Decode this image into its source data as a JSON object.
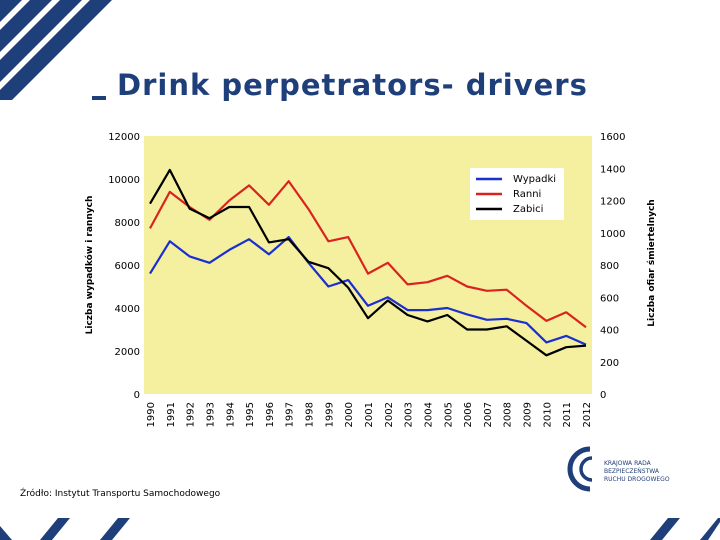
{
  "slide": {
    "title": "Drink perpetrators- drivers",
    "source": "Źródło: Instytut Transportu Samochodowego",
    "logo_lines": [
      "KRAJOWA RADA",
      "BEZPIECZEŃSTWA",
      "RUCHU DROGOWEGO"
    ]
  },
  "colors": {
    "plot_bg": "#f5f0a0",
    "brand_blue": "#1f3f7a",
    "wypadki": "#1a2fd0",
    "ranni": "#d9231f",
    "zabici": "#000000"
  },
  "chart_data": {
    "type": "line",
    "x": [
      "1990",
      "1991",
      "1992",
      "1993",
      "1994",
      "1995",
      "1996",
      "1997",
      "1998",
      "1999",
      "2000",
      "2001",
      "2002",
      "2003",
      "2004",
      "2005",
      "2006",
      "2007",
      "2008",
      "2009",
      "2010",
      "2011",
      "2012"
    ],
    "left_axis": {
      "title": "Liczba wypadków i rannych",
      "ylim": [
        0,
        12000
      ],
      "ticks": [
        "0",
        "2000",
        "4000",
        "6000",
        "8000",
        "10000",
        "12000"
      ]
    },
    "right_axis": {
      "title": "Liczba ofiar śmiertelnych",
      "ylim": [
        0,
        1600
      ],
      "ticks": [
        "0",
        "200",
        "400",
        "600",
        "800",
        "1000",
        "1200",
        "1400",
        "1600"
      ]
    },
    "grid": false,
    "legend_position": "top-right",
    "series": [
      {
        "name": "Wypadki",
        "axis": "left",
        "color": "#1a2fd0",
        "values": [
          5600,
          7100,
          6400,
          6100,
          6700,
          7200,
          6500,
          7300,
          6100,
          5000,
          5300,
          4100,
          4500,
          3900,
          3900,
          4000,
          3700,
          3450,
          3500,
          3300,
          2400,
          2700,
          2300
        ]
      },
      {
        "name": "Ranni",
        "axis": "left",
        "color": "#d9231f",
        "values": [
          7700,
          9400,
          8700,
          8100,
          9000,
          9700,
          8800,
          9900,
          8600,
          7100,
          7300,
          5600,
          6100,
          5100,
          5200,
          5500,
          5000,
          4800,
          4850,
          4100,
          3400,
          3800,
          3100
        ]
      },
      {
        "name": "Zabici",
        "axis": "right",
        "color": "#000000",
        "values": [
          1180,
          1390,
          1150,
          1090,
          1160,
          1160,
          940,
          960,
          820,
          780,
          660,
          470,
          580,
          490,
          450,
          490,
          400,
          400,
          420,
          330,
          240,
          290,
          300
        ]
      }
    ]
  }
}
